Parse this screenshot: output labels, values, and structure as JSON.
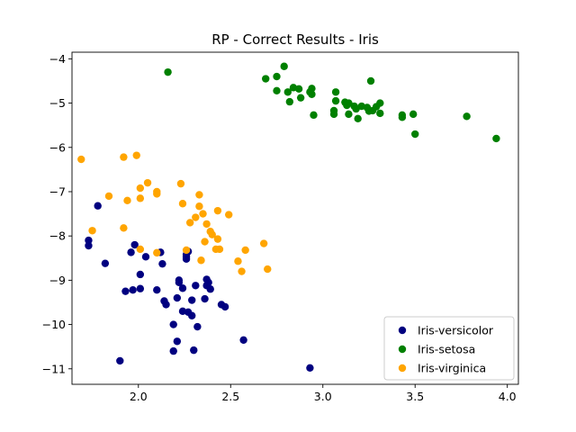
{
  "chart_data": {
    "type": "scatter",
    "title": "RP - Correct Results - Iris",
    "xlabel": "",
    "ylabel": "",
    "xlim": [
      1.64,
      4.06
    ],
    "ylim": [
      -11.35,
      -3.85
    ],
    "xticks": [
      2.0,
      2.5,
      3.0,
      3.5,
      4.0
    ],
    "xtick_labels": [
      "2.0",
      "2.5",
      "3.0",
      "3.5",
      "4.0"
    ],
    "yticks": [
      -4,
      -5,
      -6,
      -7,
      -8,
      -9,
      -10,
      -11
    ],
    "ytick_labels": [
      "−4",
      "−5",
      "−6",
      "−7",
      "−8",
      "−9",
      "−10",
      "−11"
    ],
    "grid": false,
    "legend_position": "lower-right",
    "series": [
      {
        "name": "Iris-versicolor",
        "color": "#000080",
        "points": [
          [
            1.73,
            -8.1
          ],
          [
            1.73,
            -8.22
          ],
          [
            1.78,
            -7.32
          ],
          [
            1.82,
            -8.62
          ],
          [
            1.9,
            -10.82
          ],
          [
            1.93,
            -9.25
          ],
          [
            1.96,
            -8.37
          ],
          [
            1.97,
            -9.22
          ],
          [
            1.98,
            -8.2
          ],
          [
            2.01,
            -9.19
          ],
          [
            2.01,
            -8.87
          ],
          [
            2.04,
            -8.47
          ],
          [
            2.1,
            -9.22
          ],
          [
            2.12,
            -8.37
          ],
          [
            2.13,
            -8.63
          ],
          [
            2.14,
            -9.47
          ],
          [
            2.15,
            -9.55
          ],
          [
            2.19,
            -10.6
          ],
          [
            2.19,
            -10.0
          ],
          [
            2.21,
            -10.38
          ],
          [
            2.21,
            -9.4
          ],
          [
            2.22,
            -9.05
          ],
          [
            2.22,
            -9.0
          ],
          [
            2.24,
            -9.7
          ],
          [
            2.24,
            -9.18
          ],
          [
            2.26,
            -8.52
          ],
          [
            2.26,
            -8.47
          ],
          [
            2.26,
            -8.42
          ],
          [
            2.27,
            -9.72
          ],
          [
            2.27,
            -8.35
          ],
          [
            2.29,
            -9.45
          ],
          [
            2.29,
            -9.8
          ],
          [
            2.3,
            -10.58
          ],
          [
            2.31,
            -9.12
          ],
          [
            2.32,
            -10.05
          ],
          [
            2.36,
            -9.42
          ],
          [
            2.37,
            -9.12
          ],
          [
            2.37,
            -8.98
          ],
          [
            2.38,
            -9.05
          ],
          [
            2.39,
            -9.2
          ],
          [
            2.45,
            -9.55
          ],
          [
            2.47,
            -9.6
          ],
          [
            2.57,
            -10.35
          ],
          [
            2.93,
            -10.98
          ]
        ]
      },
      {
        "name": "Iris-setosa",
        "color": "#008000",
        "points": [
          [
            2.16,
            -4.3
          ],
          [
            2.69,
            -4.45
          ],
          [
            2.75,
            -4.4
          ],
          [
            2.75,
            -4.72
          ],
          [
            2.79,
            -4.17
          ],
          [
            2.81,
            -4.75
          ],
          [
            2.82,
            -4.97
          ],
          [
            2.84,
            -4.65
          ],
          [
            2.87,
            -4.68
          ],
          [
            2.88,
            -4.88
          ],
          [
            2.93,
            -4.75
          ],
          [
            2.94,
            -4.8
          ],
          [
            2.94,
            -4.67
          ],
          [
            2.95,
            -5.27
          ],
          [
            3.06,
            -5.25
          ],
          [
            3.06,
            -5.17
          ],
          [
            3.07,
            -4.95
          ],
          [
            3.07,
            -4.75
          ],
          [
            3.12,
            -4.98
          ],
          [
            3.13,
            -5.05
          ],
          [
            3.14,
            -5.0
          ],
          [
            3.14,
            -5.25
          ],
          [
            3.17,
            -5.07
          ],
          [
            3.18,
            -5.13
          ],
          [
            3.19,
            -5.35
          ],
          [
            3.21,
            -5.07
          ],
          [
            3.24,
            -5.1
          ],
          [
            3.25,
            -5.18
          ],
          [
            3.26,
            -4.5
          ],
          [
            3.27,
            -5.17
          ],
          [
            3.29,
            -5.08
          ],
          [
            3.31,
            -5.0
          ],
          [
            3.31,
            -5.23
          ],
          [
            3.43,
            -5.27
          ],
          [
            3.43,
            -5.32
          ],
          [
            3.49,
            -5.25
          ],
          [
            3.5,
            -5.7
          ],
          [
            3.78,
            -5.3
          ],
          [
            3.94,
            -5.8
          ]
        ]
      },
      {
        "name": "Iris-virginica",
        "color": "#FFA500",
        "points": [
          [
            1.69,
            -6.27
          ],
          [
            1.75,
            -7.88
          ],
          [
            1.84,
            -7.1
          ],
          [
            1.92,
            -6.22
          ],
          [
            1.92,
            -7.82
          ],
          [
            1.94,
            -7.2
          ],
          [
            1.99,
            -6.18
          ],
          [
            2.01,
            -6.92
          ],
          [
            2.01,
            -7.15
          ],
          [
            2.01,
            -8.3
          ],
          [
            2.05,
            -6.8
          ],
          [
            2.1,
            -7.0
          ],
          [
            2.1,
            -7.05
          ],
          [
            2.1,
            -8.38
          ],
          [
            2.23,
            -6.82
          ],
          [
            2.24,
            -7.27
          ],
          [
            2.26,
            -8.32
          ],
          [
            2.28,
            -7.7
          ],
          [
            2.31,
            -7.58
          ],
          [
            2.33,
            -7.07
          ],
          [
            2.33,
            -7.33
          ],
          [
            2.34,
            -8.55
          ],
          [
            2.35,
            -7.5
          ],
          [
            2.36,
            -8.13
          ],
          [
            2.37,
            -7.73
          ],
          [
            2.39,
            -7.9
          ],
          [
            2.4,
            -7.97
          ],
          [
            2.42,
            -8.3
          ],
          [
            2.43,
            -7.43
          ],
          [
            2.43,
            -8.07
          ],
          [
            2.44,
            -8.3
          ],
          [
            2.49,
            -7.52
          ],
          [
            2.54,
            -8.57
          ],
          [
            2.56,
            -8.8
          ],
          [
            2.58,
            -8.32
          ],
          [
            2.68,
            -8.17
          ],
          [
            2.7,
            -8.75
          ]
        ]
      }
    ]
  }
}
